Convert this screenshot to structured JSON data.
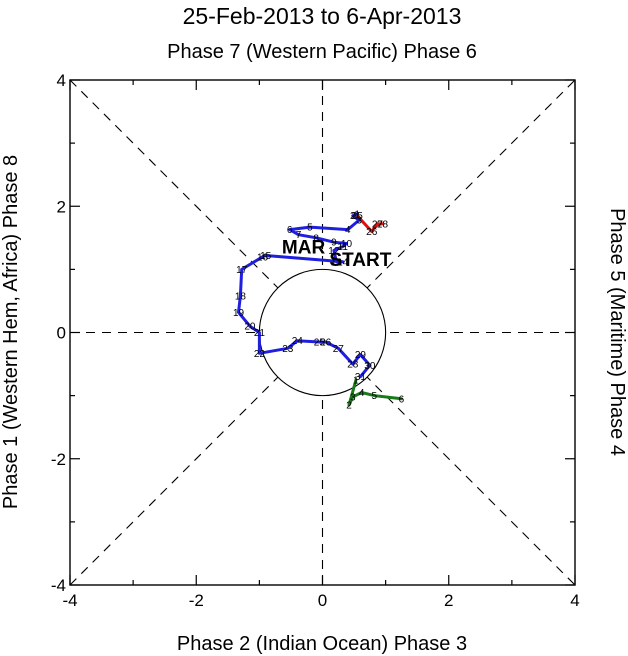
{
  "chart_data": {
    "type": "line",
    "title": "25-Feb-2013 to 6-Apr-2013",
    "subtitle": "Phase 7 (Western Pacific) Phase 6",
    "xlabel": "Phase 2 (Indian Ocean) Phase 3",
    "ylabel_left": "Phase 1 (Western Hem, Africa) Phase 8",
    "ylabel_right": "Phase 5 (Maritime) Phase 4",
    "xlim": [
      -4,
      4
    ],
    "ylim": [
      -4,
      4
    ],
    "x_ticks": [
      "-4",
      "-2",
      "0",
      "2",
      "4"
    ],
    "y_ticks": [
      "-4",
      "-2",
      "0",
      "2",
      "4"
    ],
    "unit_circle_radius": 1,
    "annotations": [
      {
        "text": "MAR",
        "x": -0.3,
        "y": 1.25,
        "color": "#1f1fe0"
      },
      {
        "text": "START",
        "x": 0.6,
        "y": 1.05,
        "color": "#000000"
      }
    ],
    "series": [
      {
        "color": "#e01010",
        "points": [
          {
            "day": "25",
            "x": 0.55,
            "y": 1.85
          },
          {
            "day": "26",
            "x": 0.78,
            "y": 1.6
          },
          {
            "day": "27",
            "x": 0.87,
            "y": 1.72
          },
          {
            "day": "28",
            "x": 0.95,
            "y": 1.72
          }
        ]
      },
      {
        "color": "#1f1fe0",
        "points": [
          {
            "day": "1",
            "x": 0.55,
            "y": 1.88
          },
          {
            "day": "2",
            "x": 0.48,
            "y": 1.85
          },
          {
            "day": "3",
            "x": 0.58,
            "y": 1.78
          },
          {
            "day": "4",
            "x": 0.4,
            "y": 1.63
          },
          {
            "day": "5",
            "x": -0.2,
            "y": 1.67
          },
          {
            "day": "6",
            "x": -0.52,
            "y": 1.63
          },
          {
            "day": "7",
            "x": -0.38,
            "y": 1.55
          },
          {
            "day": "8",
            "x": -0.1,
            "y": 1.5
          },
          {
            "day": "9",
            "x": 0.18,
            "y": 1.43
          },
          {
            "day": "10",
            "x": 0.38,
            "y": 1.41
          },
          {
            "day": "11",
            "x": 0.32,
            "y": 1.36
          },
          {
            "day": "12",
            "x": 0.18,
            "y": 1.3
          },
          {
            "day": "13",
            "x": 0.22,
            "y": 1.12
          },
          {
            "day": "14",
            "x": 0.32,
            "y": 1.12
          },
          {
            "day": "15",
            "x": -0.9,
            "y": 1.22
          },
          {
            "day": "16",
            "x": -0.95,
            "y": 1.2
          },
          {
            "day": "17",
            "x": -1.28,
            "y": 1.0
          },
          {
            "day": "18",
            "x": -1.3,
            "y": 0.58
          },
          {
            "day": "19",
            "x": -1.33,
            "y": 0.32
          },
          {
            "day": "20",
            "x": -1.15,
            "y": 0.1
          },
          {
            "day": "21",
            "x": -1.0,
            "y": 0.0
          },
          {
            "day": "22",
            "x": -1.0,
            "y": -0.33
          },
          {
            "day": "23",
            "x": -0.55,
            "y": -0.25
          },
          {
            "day": "24",
            "x": -0.4,
            "y": -0.13
          },
          {
            "day": "25",
            "x": -0.05,
            "y": -0.15
          },
          {
            "day": "26",
            "x": 0.05,
            "y": -0.15
          },
          {
            "day": "27",
            "x": 0.25,
            "y": -0.25
          },
          {
            "day": "28",
            "x": 0.48,
            "y": -0.5
          },
          {
            "day": "29",
            "x": 0.6,
            "y": -0.35
          },
          {
            "day": "30",
            "x": 0.75,
            "y": -0.52
          },
          {
            "day": "31",
            "x": 0.6,
            "y": -0.7
          }
        ]
      },
      {
        "color": "#1a7a1a",
        "points": [
          {
            "day": "1",
            "x": 0.53,
            "y": -0.75
          },
          {
            "day": "2",
            "x": 0.42,
            "y": -1.15
          },
          {
            "day": "3",
            "x": 0.48,
            "y": -1.02
          },
          {
            "day": "4",
            "x": 0.62,
            "y": -0.95
          },
          {
            "day": "5",
            "x": 0.82,
            "y": -1.0
          },
          {
            "day": "6",
            "x": 1.25,
            "y": -1.05
          }
        ]
      }
    ]
  }
}
